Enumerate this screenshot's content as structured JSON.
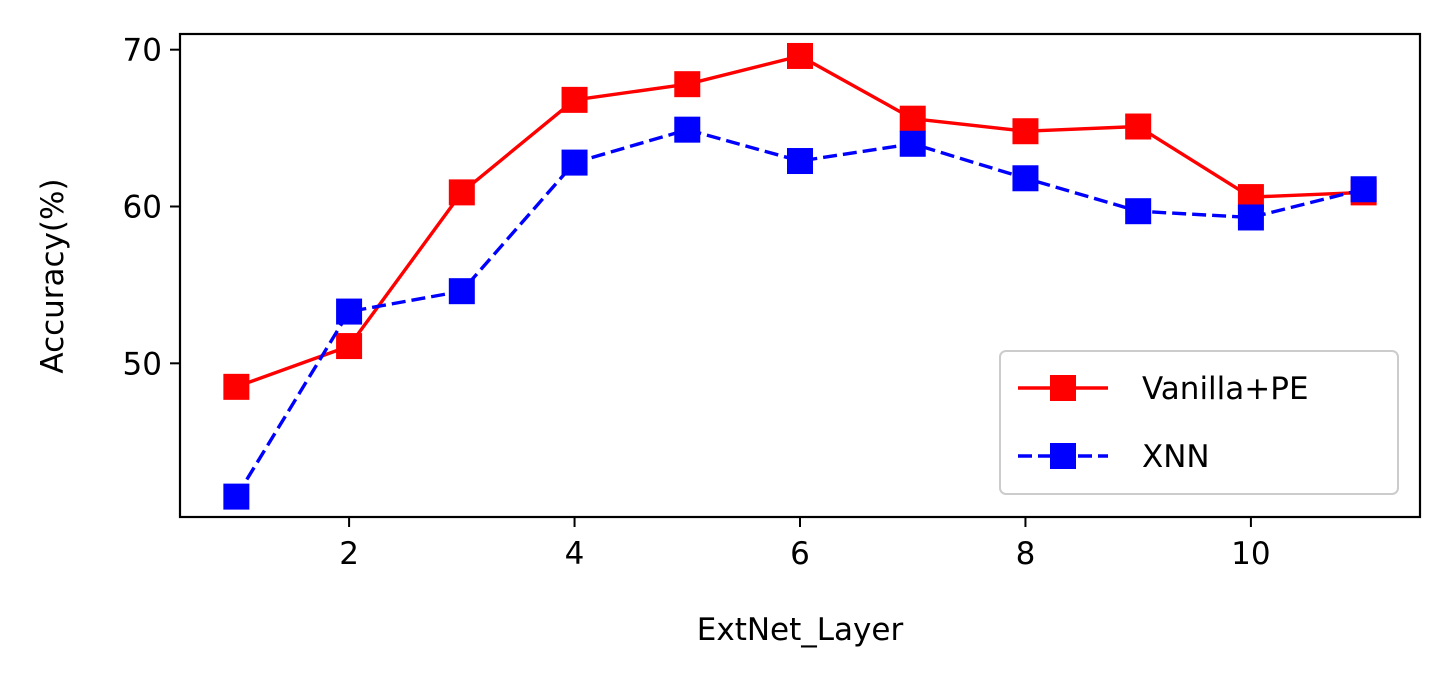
{
  "chart_data": {
    "type": "line",
    "title": "",
    "xlabel": "ExtNet_Layer",
    "ylabel": "Accuracy(%)",
    "xlim": [
      0.5,
      11.5
    ],
    "ylim": [
      40.2,
      71.0
    ],
    "xticks": [
      2,
      4,
      6,
      8,
      10
    ],
    "yticks": [
      50,
      60,
      70
    ],
    "grid": false,
    "legend_position": "lower-right",
    "x": [
      1,
      2,
      3,
      4,
      5,
      6,
      7,
      8,
      9,
      10,
      11
    ],
    "series": [
      {
        "name": "Vanilla+PE",
        "color": "#ff0000",
        "linestyle": "solid",
        "marker": "square",
        "values": [
          48.5,
          51.1,
          60.9,
          66.8,
          67.8,
          69.6,
          65.6,
          64.8,
          65.1,
          60.6,
          60.9
        ]
      },
      {
        "name": "XNN",
        "color": "#0000ff",
        "linestyle": "dashed",
        "marker": "square",
        "values": [
          41.5,
          53.3,
          54.6,
          62.8,
          64.9,
          62.9,
          64.0,
          61.8,
          59.7,
          59.3,
          61.1
        ]
      }
    ]
  }
}
